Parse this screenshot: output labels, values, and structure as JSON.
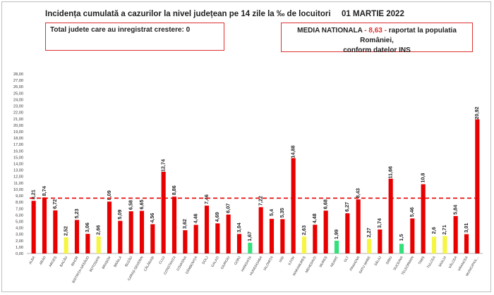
{
  "header": {
    "title": "Incidența cumulată a cazurilor la nivel județean pe 14 zile la ‰ de locuitori",
    "date": "01 MARTIE 2022"
  },
  "info_left": {
    "text": "Total judete care au inregistrat crestere: 0"
  },
  "info_right": {
    "label": "MEDIA NATIONALA",
    "dash1": " - ",
    "value": "8,63",
    "dash2": " - ",
    "text1": " raportat la populatia României,",
    "text2": "conform datelor INS"
  },
  "colors": {
    "high": "#e80000",
    "mid": "#f5f542",
    "low": "#33e07a",
    "threshold": "#e80000"
  },
  "chart_data": {
    "type": "bar",
    "title": "",
    "xlabel": "",
    "ylabel": "",
    "ylim": [
      0,
      28
    ],
    "ytick_step": 1,
    "grid": false,
    "threshold": 8.63,
    "categories": [
      "ALBA",
      "ARAD",
      "ARGEȘ",
      "BACĂU",
      "BIHOR",
      "BISTRIȚA-NĂSĂUD",
      "BOTOȘANI",
      "BRAȘOV",
      "BRĂILA",
      "BUZĂU",
      "CARAȘ-SEVERIN",
      "CĂLĂRAȘI",
      "CLUJ",
      "CONSTANȚA",
      "COVASNA",
      "DÂMBOVIȚA",
      "DOLJ",
      "GALAȚI",
      "GIURGIU",
      "GORJ",
      "HARGHITA",
      "HUNEDOARA",
      "IALOMIȚA",
      "IAȘI",
      "ILFOV",
      "MARAMUREȘ",
      "MEHEDINȚI",
      "MUREȘ",
      "NEAMȚ",
      "OLT",
      "PRAHOVA",
      "SATU MARE",
      "SĂLAJ",
      "SIBIU",
      "SUCEAVA",
      "TELEORMAN",
      "TIMIȘ",
      "TULCEA",
      "VASLUI",
      "VÂLCEA",
      "VRANCEA",
      "MUNICIPIUL..."
    ],
    "values": [
      8.21,
      8.74,
      6.72,
      2.52,
      5.23,
      3.06,
      2.66,
      8.09,
      5.09,
      6.58,
      6.65,
      4.56,
      12.74,
      8.86,
      3.62,
      4.46,
      7.46,
      4.69,
      6.07,
      3.04,
      1.67,
      7.22,
      5.4,
      5.35,
      14.88,
      2.63,
      4.48,
      6.68,
      1.99,
      6.27,
      8.43,
      2.27,
      3.74,
      11.66,
      1.5,
      5.46,
      10.8,
      2.6,
      2.71,
      5.84,
      3.01,
      20.92
    ],
    "value_labels": [
      "8,21",
      "8,74",
      "6,72",
      "2,52",
      "5,23",
      "3,06",
      "2,66",
      "8,09",
      "5,09",
      "6,58",
      "6,65",
      "4,56",
      "12,74",
      "8,86",
      "3,62",
      "4,46",
      "7,46",
      "4,69",
      "6,07",
      "3,04",
      "1,67",
      "7,22",
      "5,4",
      "5,35",
      "14,88",
      "2,63",
      "4,48",
      "6,68",
      "1,99",
      "6,27",
      "8,43",
      "2,27",
      "3,74",
      "11,66",
      "1,5",
      "5,46",
      "10,8",
      "2,6",
      "2,71",
      "5,84",
      "3,01",
      "20,92"
    ]
  }
}
